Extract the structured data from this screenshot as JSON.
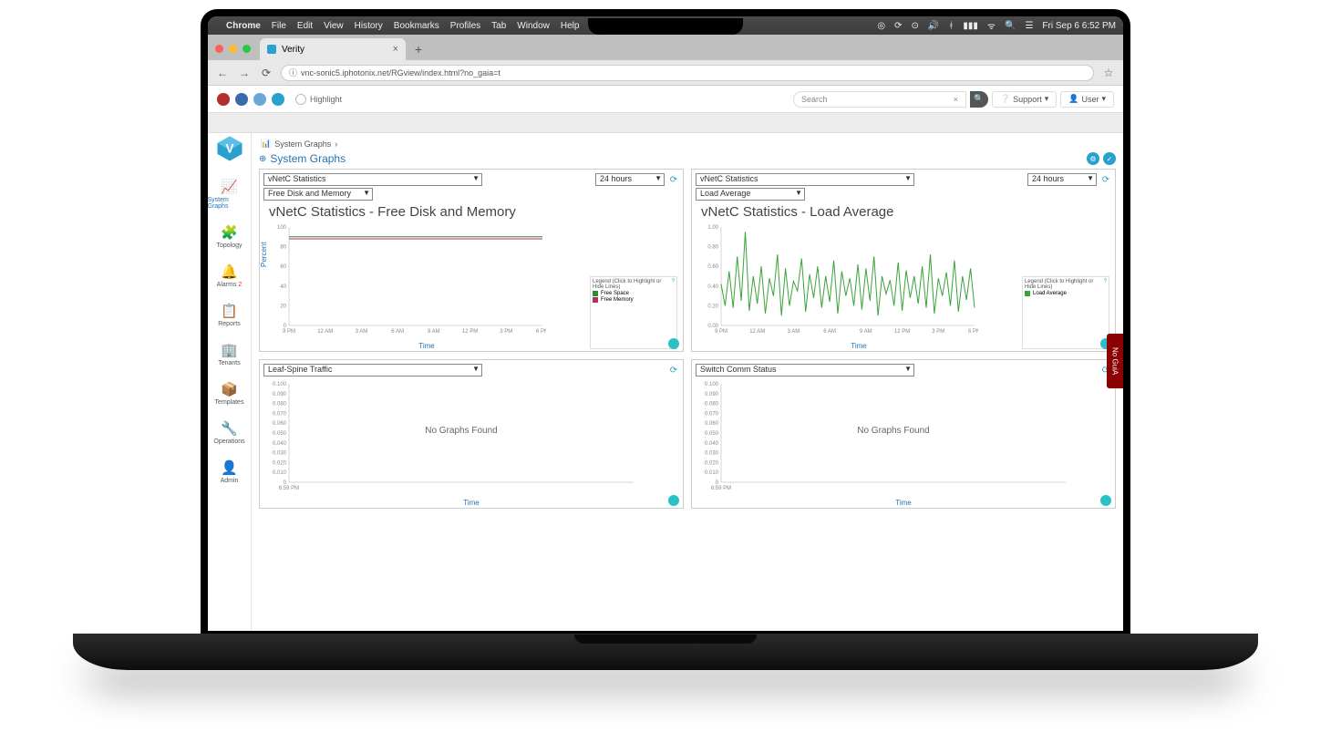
{
  "mac_menu": {
    "items": [
      "Chrome",
      "File",
      "Edit",
      "View",
      "History",
      "Bookmarks",
      "Profiles",
      "Tab",
      "Window",
      "Help"
    ],
    "clock": "Fri Sep 6  6:52 PM"
  },
  "browser": {
    "tab_title": "Verity",
    "url": "vnc-sonic5.iphotonix.net/RGview/index.html?no_gaia=t"
  },
  "app": {
    "highlight_label": "Highlight",
    "search_placeholder": "Search",
    "support_label": "Support",
    "user_label": "User",
    "side_tab": "No GuiA"
  },
  "sidebar": {
    "items": [
      {
        "icon": "📈",
        "label": "System Graphs",
        "active": true,
        "name": "system-graphs"
      },
      {
        "icon": "🧩",
        "label": "Topology",
        "active": false,
        "name": "topology"
      },
      {
        "icon": "🔔",
        "label": "Alarms",
        "active": false,
        "name": "alarms",
        "badge": "2"
      },
      {
        "icon": "📋",
        "label": "Reports",
        "active": false,
        "name": "reports"
      },
      {
        "icon": "🏢",
        "label": "Tenants",
        "active": false,
        "name": "tenants"
      },
      {
        "icon": "📦",
        "label": "Templates",
        "active": false,
        "name": "templates"
      },
      {
        "icon": "🔧",
        "label": "Operations",
        "active": false,
        "name": "operations"
      },
      {
        "icon": "👤",
        "label": "Admin",
        "active": false,
        "name": "admin"
      }
    ]
  },
  "breadcrumb": "System Graphs",
  "page_title": "System Graphs",
  "panels": {
    "top_left": {
      "category_select": "vNetC Statistics",
      "metric_select": "Free Disk and Memory",
      "range_select": "24 hours",
      "title": "vNetC Statistics - Free Disk and Memory",
      "chart": {
        "type": "line",
        "ylabel": "Percent",
        "xlabel": "Time",
        "ylim": [
          0,
          100
        ],
        "yticks": [
          0,
          20,
          40,
          60,
          80,
          100
        ],
        "ytick_labels": [
          "0",
          "20",
          "40",
          "60",
          "80",
          "100"
        ],
        "xticks_labels": [
          "9 PM",
          "12 AM",
          "3 AM",
          "6 AM",
          "9 AM",
          "12 PM",
          "3 PM",
          "6 PM"
        ],
        "background_color": "#ffffff",
        "grid_color": "#e8e8e8",
        "series": [
          {
            "name": "Free Space",
            "color": "#2e8b2e",
            "values": [
              90,
              90,
              90,
              90,
              90,
              90,
              90,
              90,
              90,
              90,
              90,
              90,
              90,
              90,
              90,
              90
            ]
          },
          {
            "name": "Free Memory",
            "color": "#b03060",
            "values": [
              88,
              88,
              88,
              88,
              88,
              88,
              88,
              88,
              88,
              88,
              88,
              88,
              88,
              88,
              88,
              88
            ]
          }
        ],
        "legend_title": "Legend (Click to Highlight or Hide Lines)"
      }
    },
    "top_right": {
      "category_select": "vNetC Statistics",
      "metric_select": "Load Average",
      "range_select": "24 hours",
      "title": "vNetC Statistics - Load Average",
      "chart": {
        "type": "line",
        "ylabel": "",
        "xlabel": "Time",
        "ylim": [
          0,
          1.0
        ],
        "yticks": [
          0,
          0.2,
          0.4,
          0.6,
          0.8,
          1.0
        ],
        "ytick_labels": [
          "0.00",
          "0.20",
          "0.40",
          "0.60",
          "0.80",
          "1.00"
        ],
        "xticks_labels": [
          "9 PM",
          "12 AM",
          "3 AM",
          "6 AM",
          "9 AM",
          "12 PM",
          "3 PM",
          "6 PM"
        ],
        "background_color": "#ffffff",
        "grid_color": "#e8e8e8",
        "series": [
          {
            "name": "Load Average",
            "color": "#3aa33a",
            "values": [
              0.42,
              0.2,
              0.55,
              0.18,
              0.7,
              0.25,
              0.95,
              0.15,
              0.5,
              0.22,
              0.6,
              0.12,
              0.48,
              0.3,
              0.72,
              0.1,
              0.58,
              0.2,
              0.45,
              0.35,
              0.68,
              0.14,
              0.52,
              0.28,
              0.6,
              0.18,
              0.5,
              0.24,
              0.66,
              0.12,
              0.55,
              0.3,
              0.48,
              0.2,
              0.62,
              0.16,
              0.58,
              0.25,
              0.7,
              0.1,
              0.5,
              0.32,
              0.46,
              0.2,
              0.64,
              0.15,
              0.56,
              0.28,
              0.5,
              0.22,
              0.6,
              0.18,
              0.72,
              0.12,
              0.48,
              0.3,
              0.54,
              0.2,
              0.66,
              0.14,
              0.5,
              0.26,
              0.58,
              0.18
            ]
          }
        ],
        "legend_title": "Legend (Click to Highlight or Hide Lines)"
      }
    },
    "bottom_left": {
      "category_select": "Leaf-Spine Traffic",
      "chart": {
        "type": "empty",
        "xlabel": "Time",
        "ylim": [
          0,
          0.1
        ],
        "yticks": [
          0,
          0.01,
          0.02,
          0.03,
          0.04,
          0.05,
          0.06,
          0.07,
          0.08,
          0.09,
          0.1
        ],
        "ytick_labels": [
          "0",
          "0.010",
          "0.020",
          "0.030",
          "0.040",
          "0.050",
          "0.060",
          "0.070",
          "0.080",
          "0.090",
          "0.100"
        ],
        "xticks_labels": [
          "6:59 PM"
        ],
        "empty_text": "No Graphs Found",
        "background_color": "#ffffff"
      }
    },
    "bottom_right": {
      "category_select": "Switch Comm Status",
      "chart": {
        "type": "empty",
        "xlabel": "Time",
        "ylim": [
          0,
          0.1
        ],
        "yticks": [
          0,
          0.01,
          0.02,
          0.03,
          0.04,
          0.05,
          0.06,
          0.07,
          0.08,
          0.09,
          0.1
        ],
        "ytick_labels": [
          "0",
          "0.010",
          "0.020",
          "0.030",
          "0.040",
          "0.050",
          "0.060",
          "0.070",
          "0.080",
          "0.090",
          "0.100"
        ],
        "xticks_labels": [
          "6:59 PM"
        ],
        "empty_text": "No Graphs Found",
        "background_color": "#ffffff"
      }
    }
  },
  "colors": {
    "traffic_red": "#ff5f57",
    "traffic_yellow": "#febc2e",
    "traffic_green": "#28c840",
    "accent": "#2aa0cf",
    "link": "#2573b5",
    "circ1": "#b52e2e",
    "circ2": "#3a6aa8",
    "circ3": "#6aa8d8",
    "circ4": "#2aa0cf"
  }
}
